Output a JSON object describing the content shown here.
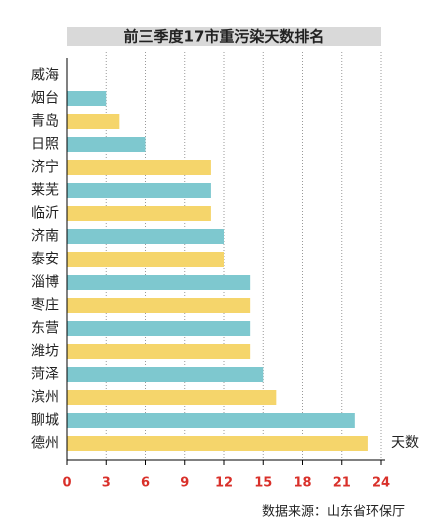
{
  "chart_data": {
    "type": "bar",
    "orientation": "horizontal",
    "title": "前三季度17市重污染天数排名",
    "categories": [
      "威海",
      "烟台",
      "青岛",
      "日照",
      "济宁",
      "莱芜",
      "临沂",
      "济南",
      "泰安",
      "淄博",
      "枣庄",
      "东营",
      "潍坊",
      "菏泽",
      "滨州",
      "聊城",
      "德州"
    ],
    "values": [
      0,
      3,
      4,
      6,
      11,
      11,
      11,
      12,
      12,
      14,
      14,
      14,
      14,
      15,
      16,
      22,
      23
    ],
    "colors": [
      "#7ec8cf",
      "#7ec8cf",
      "#f5d56b",
      "#7ec8cf",
      "#f5d56b",
      "#7ec8cf",
      "#f5d56b",
      "#7ec8cf",
      "#f5d56b",
      "#7ec8cf",
      "#f5d56b",
      "#7ec8cf",
      "#f5d56b",
      "#7ec8cf",
      "#f5d56b",
      "#7ec8cf",
      "#f5d56b"
    ],
    "x_label": "天数",
    "source": "数据来源：山东省环保厅",
    "xlim": [
      0,
      24
    ],
    "xticks": [
      0,
      3,
      6,
      9,
      12,
      15,
      18,
      21,
      24
    ],
    "grid": true,
    "tick_color": "#d9302a"
  }
}
